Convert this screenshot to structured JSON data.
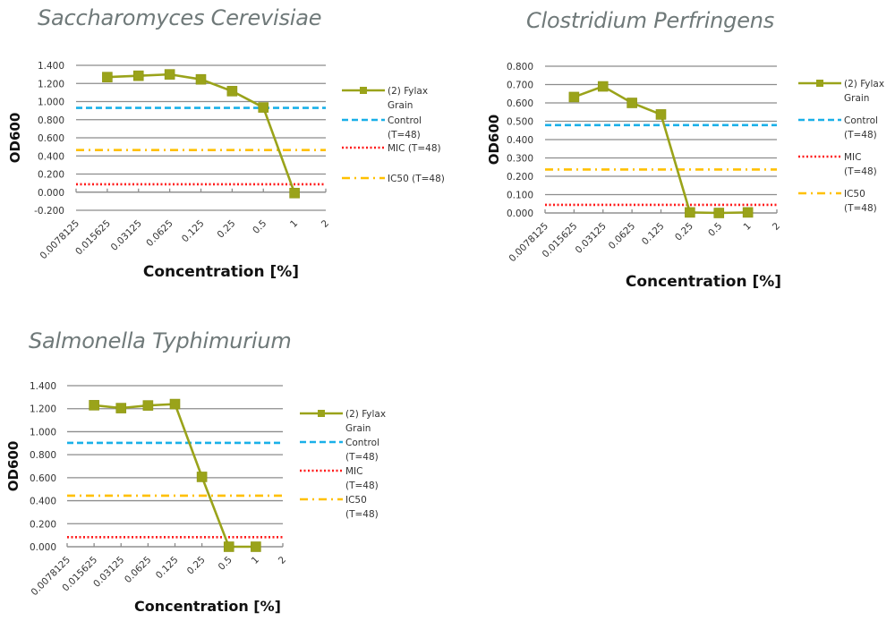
{
  "chart_data": [
    {
      "id": "saccharomyces",
      "type": "line",
      "title": "Saccharomyces Cerevisiae",
      "xlabel": "Concentration [%]",
      "ylabel": "OD600",
      "categories": [
        "0.0078125",
        "0.015625",
        "0.03125",
        "0.0625",
        "0.125",
        "0.25",
        "0.5",
        "1",
        "2"
      ],
      "ylim": [
        -0.2,
        1.4
      ],
      "ystep": 0.2,
      "ytick_labels": [
        "-0.200",
        "0.000",
        "0.200",
        "0.400",
        "0.600",
        "0.800",
        "1.000",
        "1.200",
        "1.400"
      ],
      "grid": true,
      "legend": "right",
      "series": [
        {
          "name": "(2) Fylax Grain",
          "legend_lines": [
            "(2) Fylax",
            "Grain"
          ],
          "style": "line-marker",
          "color": "#9aa31a",
          "values": [
            null,
            1.27,
            1.285,
            1.3,
            1.245,
            1.115,
            0.935,
            -0.01,
            null
          ]
        },
        {
          "name": "Control (T=48)",
          "legend_lines": [
            "Control",
            "(T=48)"
          ],
          "style": "dashed",
          "color": "#1ab0e8",
          "constant": 0.93
        },
        {
          "name": "MIC (T=48)",
          "legend_lines": [
            "MIC (T=48)"
          ],
          "style": "dotted",
          "color": "#ff1a1a",
          "constant": 0.087
        },
        {
          "name": "IC50 (T=48)",
          "legend_lines": [
            "IC50 (T=48)"
          ],
          "style": "dashdot",
          "color": "#ffc000",
          "constant": 0.465
        }
      ]
    },
    {
      "id": "clostridium",
      "type": "line",
      "title": "Clostridium Perfringens",
      "xlabel": "Concentration [%]",
      "ylabel": "OD600",
      "categories": [
        "0.0078125",
        "0.015625",
        "0.03125",
        "0.0625",
        "0.125",
        "0.25",
        "0.5",
        "1",
        "2"
      ],
      "ylim": [
        0,
        0.8
      ],
      "ystep": 0.1,
      "ytick_labels": [
        "0.000",
        "0.100",
        "0.200",
        "0.300",
        "0.400",
        "0.500",
        "0.600",
        "0.700",
        "0.800"
      ],
      "grid": true,
      "legend": "right",
      "series": [
        {
          "name": "(2) Fylax Grain",
          "legend_lines": [
            "(2) Fylax",
            "Grain"
          ],
          "style": "line-marker",
          "color": "#9aa31a",
          "values": [
            null,
            0.632,
            0.69,
            0.6,
            0.537,
            0.003,
            0.0,
            0.003,
            null
          ]
        },
        {
          "name": "Control (T=48)",
          "legend_lines": [
            "Control",
            "(T=48)"
          ],
          "style": "dashed",
          "color": "#1ab0e8",
          "constant": 0.479
        },
        {
          "name": "MIC (T=48)",
          "legend_lines": [
            "MIC",
            "(T=48)"
          ],
          "style": "dotted",
          "color": "#ff1a1a",
          "constant": 0.044
        },
        {
          "name": "IC50 (T=48)",
          "legend_lines": [
            "IC50",
            "(T=48)"
          ],
          "style": "dashdot",
          "color": "#ffc000",
          "constant": 0.237
        }
      ]
    },
    {
      "id": "salmonella",
      "type": "line",
      "title": "Salmonella Typhimurium",
      "xlabel": "Concentration [%]",
      "ylabel": "OD600",
      "categories": [
        "0.0078125",
        "0.015625",
        "0.03125",
        "0.0625",
        "0.125",
        "0.25",
        "0.5",
        "1",
        "2"
      ],
      "ylim": [
        0,
        1.4
      ],
      "ystep": 0.2,
      "ytick_labels": [
        "0.000",
        "0.200",
        "0.400",
        "0.600",
        "0.800",
        "1.000",
        "1.200",
        "1.400"
      ],
      "grid": true,
      "legend": "right",
      "series": [
        {
          "name": "(2) Fylax Grain",
          "legend_lines": [
            "(2) Fylax",
            "Grain"
          ],
          "style": "line-marker",
          "color": "#9aa31a",
          "values": [
            null,
            1.23,
            1.205,
            1.228,
            1.24,
            0.607,
            0.0,
            0.0,
            null
          ]
        },
        {
          "name": "Control (T=48)",
          "legend_lines": [
            "Control",
            "(T=48)"
          ],
          "style": "dashed",
          "color": "#1ab0e8",
          "constant": 0.903
        },
        {
          "name": "MIC (T=48)",
          "legend_lines": [
            "MIC",
            "(T=48)"
          ],
          "style": "dotted",
          "color": "#ff1a1a",
          "constant": 0.083
        },
        {
          "name": "IC50 (T=48)",
          "legend_lines": [
            "IC50",
            "(T=48)"
          ],
          "style": "dashdot",
          "color": "#ffc000",
          "constant": 0.444
        }
      ]
    }
  ]
}
